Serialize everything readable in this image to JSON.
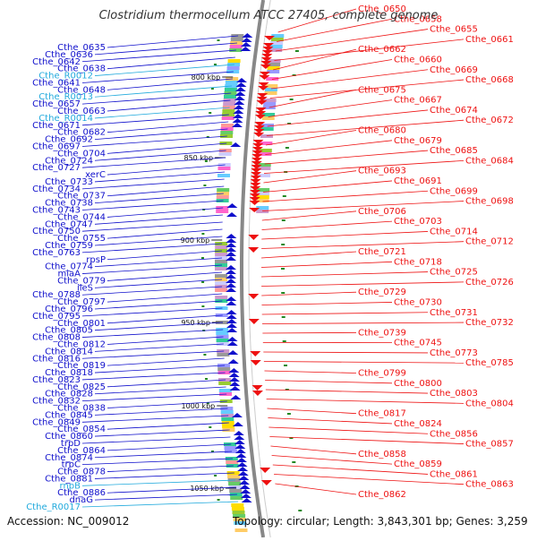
{
  "title": "Clostridium thermocellum ATCC 27405, complete genome",
  "footer": {
    "accession": "Accession: NC_009012",
    "topology": "Topology: circular; Length: 3,843,301 bp; Genes: 3,259"
  },
  "colors": {
    "left": "#1010cc",
    "rna": "#22aadd",
    "right": "#ee1111",
    "backbone": "#888888",
    "tick": "#228822"
  },
  "kbp_ticks": [
    "800 kbp",
    "850 kbp",
    "900 kbp",
    "950 kbp",
    "1000 kbp",
    "1050 kbp"
  ],
  "left_labels": [
    {
      "text": "Cthe_0635",
      "rna": false
    },
    {
      "text": "Cthe_0636",
      "rna": false
    },
    {
      "text": "Cthe_0642",
      "rna": false
    },
    {
      "text": "Cthe_0638",
      "rna": false
    },
    {
      "text": "Cthe_R0012",
      "rna": true
    },
    {
      "text": "Cthe_0641",
      "rna": false
    },
    {
      "text": "Cthe_0648",
      "rna": false
    },
    {
      "text": "Cthe_R0013",
      "rna": true
    },
    {
      "text": "Cthe_0657",
      "rna": false
    },
    {
      "text": "Cthe_0663",
      "rna": false
    },
    {
      "text": "Cthe_R0014",
      "rna": true
    },
    {
      "text": "Cthe_0671",
      "rna": false
    },
    {
      "text": "Cthe_0682",
      "rna": false
    },
    {
      "text": "Cthe_0692",
      "rna": false
    },
    {
      "text": "Cthe_0697",
      "rna": false
    },
    {
      "text": "Cthe_0704",
      "rna": false
    },
    {
      "text": "Cthe_0724",
      "rna": false
    },
    {
      "text": "Cthe_0727",
      "rna": false
    },
    {
      "text": "xerC",
      "rna": false
    },
    {
      "text": "Cthe_0733",
      "rna": false
    },
    {
      "text": "Cthe_0734",
      "rna": false
    },
    {
      "text": "Cthe_0737",
      "rna": false
    },
    {
      "text": "Cthe_0738",
      "rna": false
    },
    {
      "text": "Cthe_0743",
      "rna": false
    },
    {
      "text": "Cthe_0744",
      "rna": false
    },
    {
      "text": "Cthe_0747",
      "rna": false
    },
    {
      "text": "Cthe_0750",
      "rna": false
    },
    {
      "text": "Cthe_0755",
      "rna": false
    },
    {
      "text": "Cthe_0759",
      "rna": false
    },
    {
      "text": "Cthe_0763",
      "rna": false
    },
    {
      "text": "rpsP",
      "rna": false
    },
    {
      "text": "Cthe_0774",
      "rna": false
    },
    {
      "text": "miaA",
      "rna": false
    },
    {
      "text": "Cthe_0779",
      "rna": false
    },
    {
      "text": "ileS",
      "rna": false
    },
    {
      "text": "Cthe_0788",
      "rna": false
    },
    {
      "text": "Cthe_0797",
      "rna": false
    },
    {
      "text": "Cthe_0796",
      "rna": false
    },
    {
      "text": "Cthe_0795",
      "rna": false
    },
    {
      "text": "Cthe_0801",
      "rna": false
    },
    {
      "text": "Cthe_0805",
      "rna": false
    },
    {
      "text": "Cthe_0808",
      "rna": false
    },
    {
      "text": "Cthe_0812",
      "rna": false
    },
    {
      "text": "Cthe_0814",
      "rna": false
    },
    {
      "text": "Cthe_0816",
      "rna": false
    },
    {
      "text": "Cthe_0819",
      "rna": false
    },
    {
      "text": "Cthe_0818",
      "rna": false
    },
    {
      "text": "Cthe_0823",
      "rna": false
    },
    {
      "text": "Cthe_0825",
      "rna": false
    },
    {
      "text": "Cthe_0828",
      "rna": false
    },
    {
      "text": "Cthe_0832",
      "rna": false
    },
    {
      "text": "Cthe_0838",
      "rna": false
    },
    {
      "text": "Cthe_0845",
      "rna": false
    },
    {
      "text": "Cthe_0849",
      "rna": false
    },
    {
      "text": "Cthe_0854",
      "rna": false
    },
    {
      "text": "Cthe_0860",
      "rna": false
    },
    {
      "text": "trpD",
      "rna": false
    },
    {
      "text": "Cthe_0864",
      "rna": false
    },
    {
      "text": "Cthe_0874",
      "rna": false
    },
    {
      "text": "trpC",
      "rna": false
    },
    {
      "text": "Cthe_0878",
      "rna": false
    },
    {
      "text": "Cthe_0881",
      "rna": false
    },
    {
      "text": "rnpB",
      "rna": true
    },
    {
      "text": "Cthe_0886",
      "rna": false
    },
    {
      "text": "dnaG",
      "rna": false
    },
    {
      "text": "Cthe_R0017",
      "rna": true
    }
  ],
  "right_labels": [
    "Cthe_0650",
    "Cthe_0658",
    "Cthe_0655",
    "Cthe_0661",
    "Cthe_0662",
    "Cthe_0660",
    "Cthe_0669",
    "Cthe_0668",
    "Cthe_0675",
    "Cthe_0667",
    "Cthe_0674",
    "Cthe_0672",
    "Cthe_0680",
    "Cthe_0679",
    "Cthe_0685",
    "Cthe_0684",
    "Cthe_0693",
    "Cthe_0691",
    "Cthe_0699",
    "Cthe_0698",
    "Cthe_0706",
    "Cthe_0703",
    "Cthe_0714",
    "Cthe_0712",
    "Cthe_0721",
    "Cthe_0718",
    "Cthe_0725",
    "Cthe_0726",
    "Cthe_0729",
    "Cthe_0730",
    "Cthe_0731",
    "Cthe_0732",
    "Cthe_0739",
    "Cthe_0745",
    "Cthe_0773",
    "Cthe_0785",
    "Cthe_0799",
    "Cthe_0800",
    "Cthe_0803",
    "Cthe_0804",
    "Cthe_0817",
    "Cthe_0824",
    "Cthe_0856",
    "Cthe_0857",
    "Cthe_0858",
    "Cthe_0859",
    "Cthe_0861",
    "Cthe_0863",
    "Cthe_0862"
  ]
}
